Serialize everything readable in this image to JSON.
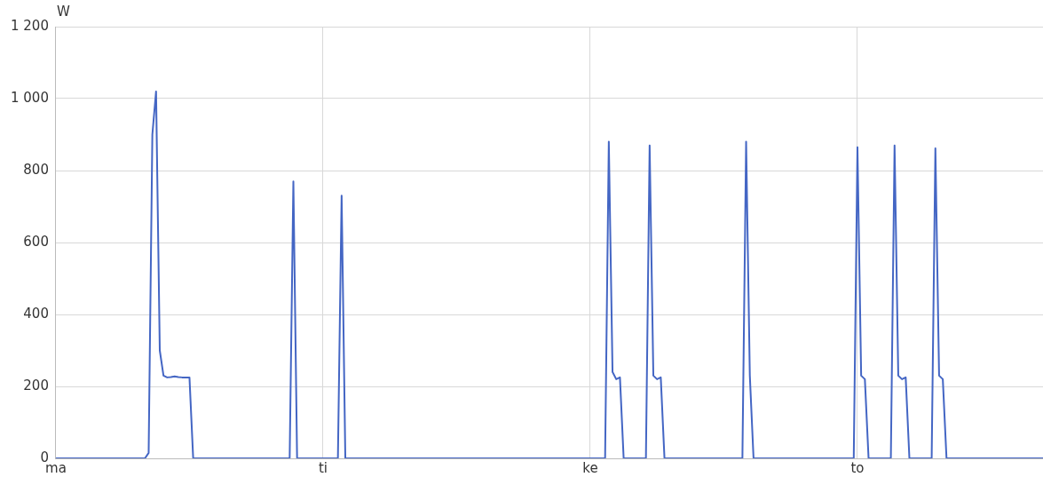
{
  "chart_data": {
    "type": "line",
    "ylabel": "W",
    "ylim": [
      0,
      1200
    ],
    "categories": [
      "ma",
      null,
      null,
      null,
      null,
      null,
      null,
      null,
      null,
      null,
      null,
      null,
      null,
      null,
      null,
      null,
      null,
      null,
      null,
      null,
      null,
      null,
      null,
      null,
      null,
      null,
      null,
      null,
      null,
      null,
      null,
      null,
      null,
      null,
      null,
      null,
      null,
      null,
      null,
      null,
      null,
      null,
      null,
      null,
      null,
      null,
      null,
      null,
      null,
      null,
      null,
      null,
      null,
      null,
      null,
      null,
      null,
      null,
      null,
      null,
      null,
      null,
      null,
      null,
      null,
      null,
      null,
      null,
      null,
      null,
      null,
      null,
      "ti",
      null,
      null,
      null,
      null,
      null,
      null,
      null,
      null,
      null,
      null,
      null,
      null,
      null,
      null,
      null,
      null,
      null,
      null,
      null,
      null,
      null,
      null,
      null,
      null,
      null,
      null,
      null,
      null,
      null,
      null,
      null,
      null,
      null,
      null,
      null,
      null,
      null,
      null,
      null,
      null,
      null,
      null,
      null,
      null,
      null,
      null,
      null,
      null,
      null,
      null,
      null,
      null,
      null,
      null,
      null,
      null,
      null,
      null,
      null,
      null,
      null,
      null,
      null,
      null,
      null,
      null,
      null,
      null,
      null,
      null,
      null,
      "ke",
      null,
      null,
      null,
      null,
      null,
      null,
      null,
      null,
      null,
      null,
      null,
      null,
      null,
      null,
      null,
      null,
      null,
      null,
      null,
      null,
      null,
      null,
      null,
      null,
      null,
      null,
      null,
      null,
      null,
      null,
      null,
      null,
      null,
      null,
      null,
      null,
      null,
      null,
      null,
      null,
      null,
      null,
      null,
      null,
      null,
      null,
      null,
      null,
      null,
      null,
      null,
      null,
      null,
      null,
      null,
      null,
      null,
      null,
      null,
      null,
      null,
      null,
      null,
      null,
      null,
      null,
      null,
      null,
      null,
      null,
      null,
      "to",
      null,
      null,
      null,
      null,
      null,
      null,
      null,
      null,
      null,
      null,
      null,
      null,
      null,
      null,
      null,
      null,
      null,
      null,
      null,
      null,
      null,
      null,
      null,
      null,
      null,
      null,
      null,
      null,
      null,
      null,
      null,
      null,
      null,
      null,
      null,
      null,
      null,
      null,
      null,
      null,
      null,
      null,
      null,
      null,
      null,
      null,
      null,
      null,
      null,
      null
    ],
    "yticks": [
      0,
      200,
      400,
      600,
      800,
      {
        "value": 1000,
        "label": "1 000"
      },
      {
        "value": 1200,
        "label": "1 200"
      }
    ],
    "grid": true,
    "legend": false,
    "marker": "none",
    "line_style": "solid",
    "series": [
      {
        "color": "#4466c4",
        "values": [
          0,
          0,
          0,
          0,
          0,
          0,
          0,
          0,
          0,
          0,
          0,
          0,
          0,
          0,
          0,
          0,
          0,
          0,
          0,
          0,
          0,
          0,
          0,
          0,
          0,
          15,
          900,
          1020,
          300,
          230,
          225,
          226,
          228,
          226,
          225,
          225,
          225,
          0,
          0,
          0,
          0,
          0,
          0,
          0,
          0,
          0,
          0,
          0,
          0,
          0,
          0,
          0,
          0,
          0,
          0,
          0,
          0,
          0,
          0,
          0,
          0,
          0,
          0,
          0,
          770,
          0,
          0,
          0,
          0,
          0,
          0,
          0,
          0,
          0,
          0,
          0,
          0,
          730,
          0,
          0,
          0,
          0,
          0,
          0,
          0,
          0,
          0,
          0,
          0,
          0,
          0,
          0,
          0,
          0,
          0,
          0,
          0,
          0,
          0,
          0,
          0,
          0,
          0,
          0,
          0,
          0,
          0,
          0,
          0,
          0,
          0,
          0,
          0,
          0,
          0,
          0,
          0,
          0,
          0,
          0,
          0,
          0,
          0,
          0,
          0,
          0,
          0,
          0,
          0,
          0,
          0,
          0,
          0,
          0,
          0,
          0,
          0,
          0,
          0,
          0,
          0,
          0,
          0,
          0,
          0,
          0,
          0,
          0,
          0,
          880,
          240,
          220,
          225,
          0,
          0,
          0,
          0,
          0,
          0,
          0,
          870,
          230,
          220,
          225,
          0,
          0,
          0,
          0,
          0,
          0,
          0,
          0,
          0,
          0,
          0,
          0,
          0,
          0,
          0,
          0,
          0,
          0,
          0,
          0,
          0,
          0,
          880,
          230,
          0,
          0,
          0,
          0,
          0,
          0,
          0,
          0,
          0,
          0,
          0,
          0,
          0,
          0,
          0,
          0,
          0,
          0,
          0,
          0,
          0,
          0,
          0,
          0,
          0,
          0,
          0,
          0,
          865,
          230,
          220,
          0,
          0,
          0,
          0,
          0,
          0,
          0,
          870,
          230,
          220,
          225,
          0,
          0,
          0,
          0,
          0,
          0,
          0,
          862,
          230,
          220,
          0,
          0,
          0,
          0,
          0,
          0,
          0,
          0,
          0,
          0,
          0,
          0,
          0,
          0,
          0,
          0,
          0,
          0,
          0,
          0,
          0,
          0,
          0,
          0,
          0,
          0,
          0
        ]
      }
    ]
  }
}
